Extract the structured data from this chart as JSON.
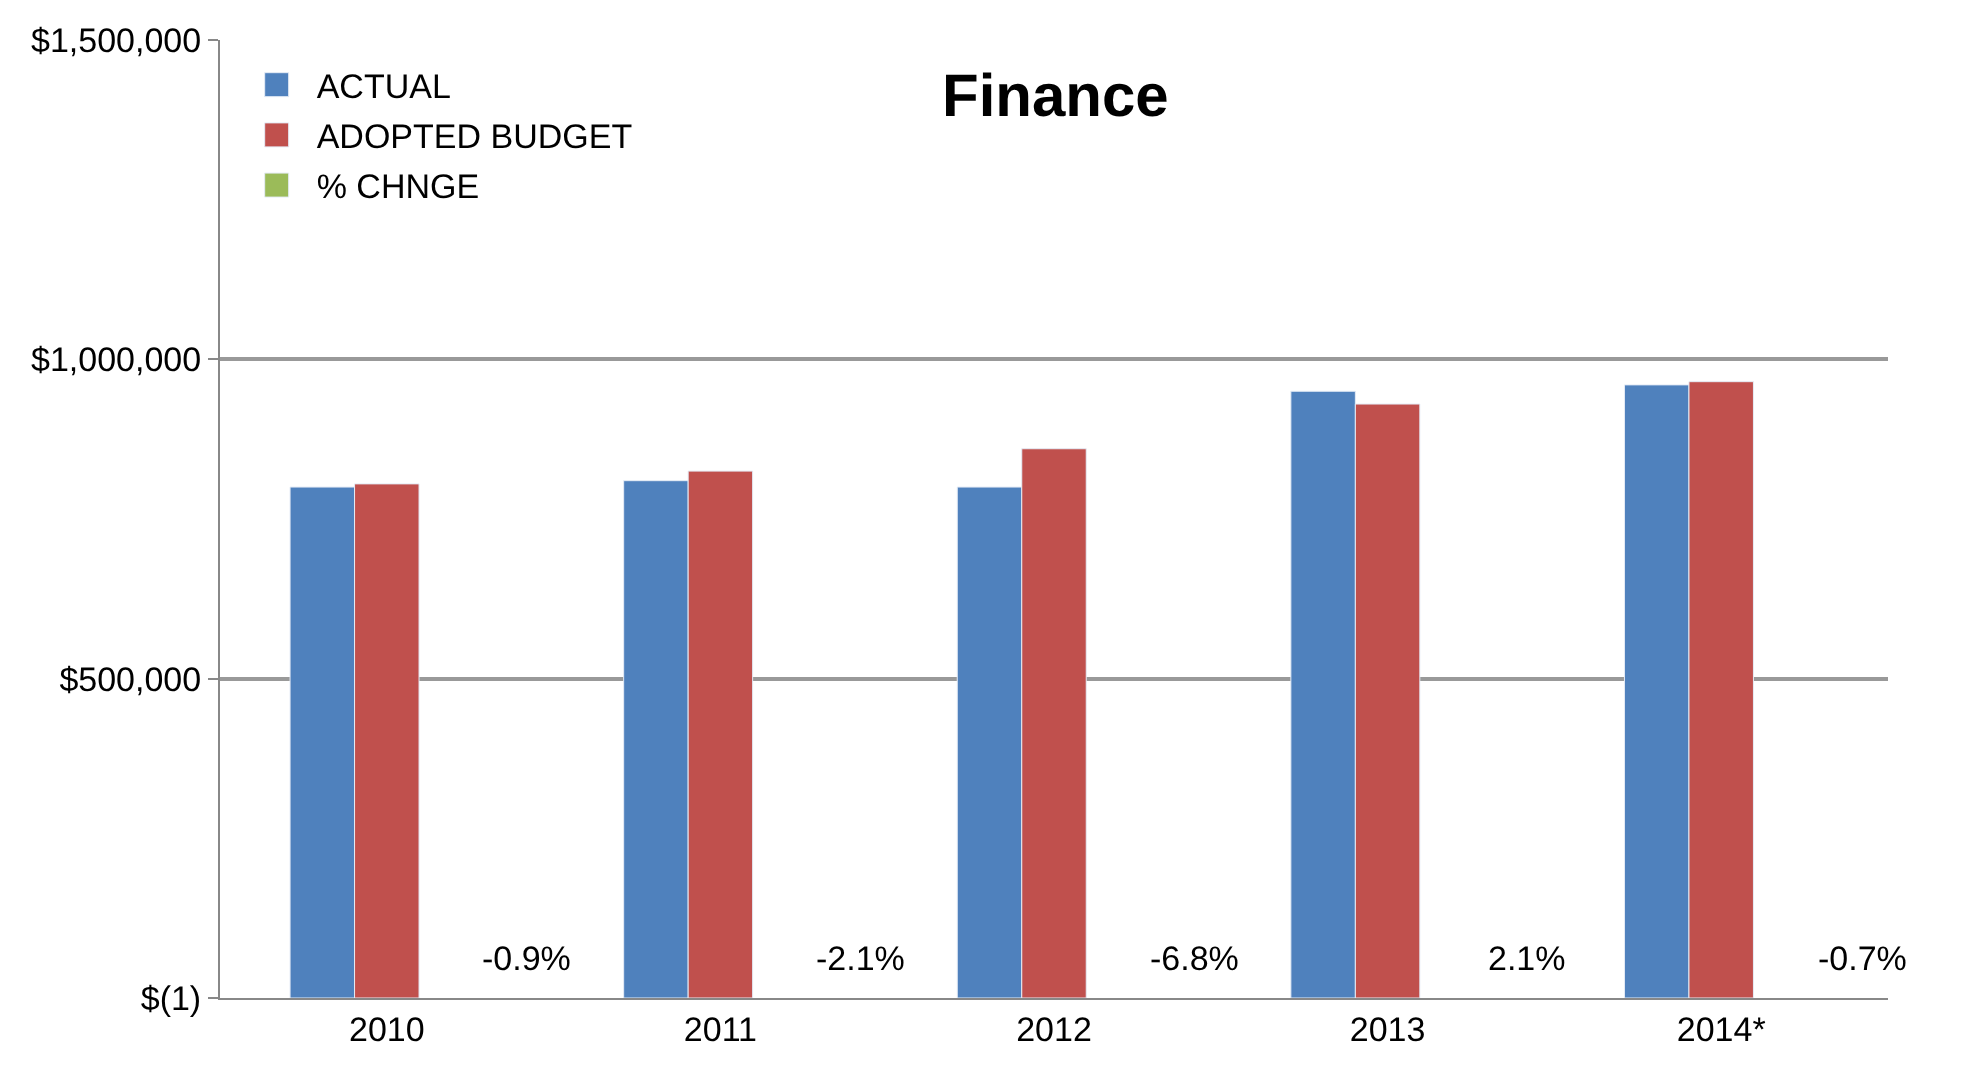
{
  "chart_data": {
    "type": "bar",
    "title": "Finance",
    "categories": [
      "2010",
      "2011",
      "2012",
      "2013",
      "2014*"
    ],
    "series": [
      {
        "name": "ACTUAL",
        "color": "#4f81bd",
        "values": [
          800000,
          810000,
          800000,
          950000,
          960000
        ]
      },
      {
        "name": "ADOPTED BUDGET",
        "color": "#c0504d",
        "values": [
          805000,
          825000,
          860000,
          930000,
          965000
        ]
      },
      {
        "name": "% CHNGE",
        "color": "#9bbb59",
        "values": [
          null,
          null,
          null,
          null,
          null
        ],
        "value_labels": [
          "-0.9%",
          "-2.1%",
          "-6.8%",
          "2.1%",
          "-0.7%"
        ]
      }
    ],
    "ylim": [
      -1,
      1500000
    ],
    "yticks": [
      {
        "value": -1,
        "label": "$(1)"
      },
      {
        "value": 500000,
        "label": "$500,000"
      },
      {
        "value": 1000000,
        "label": "$1,000,000"
      },
      {
        "value": 1500000,
        "label": "$1,500,000"
      }
    ],
    "grid": "y",
    "legend": "top left"
  }
}
